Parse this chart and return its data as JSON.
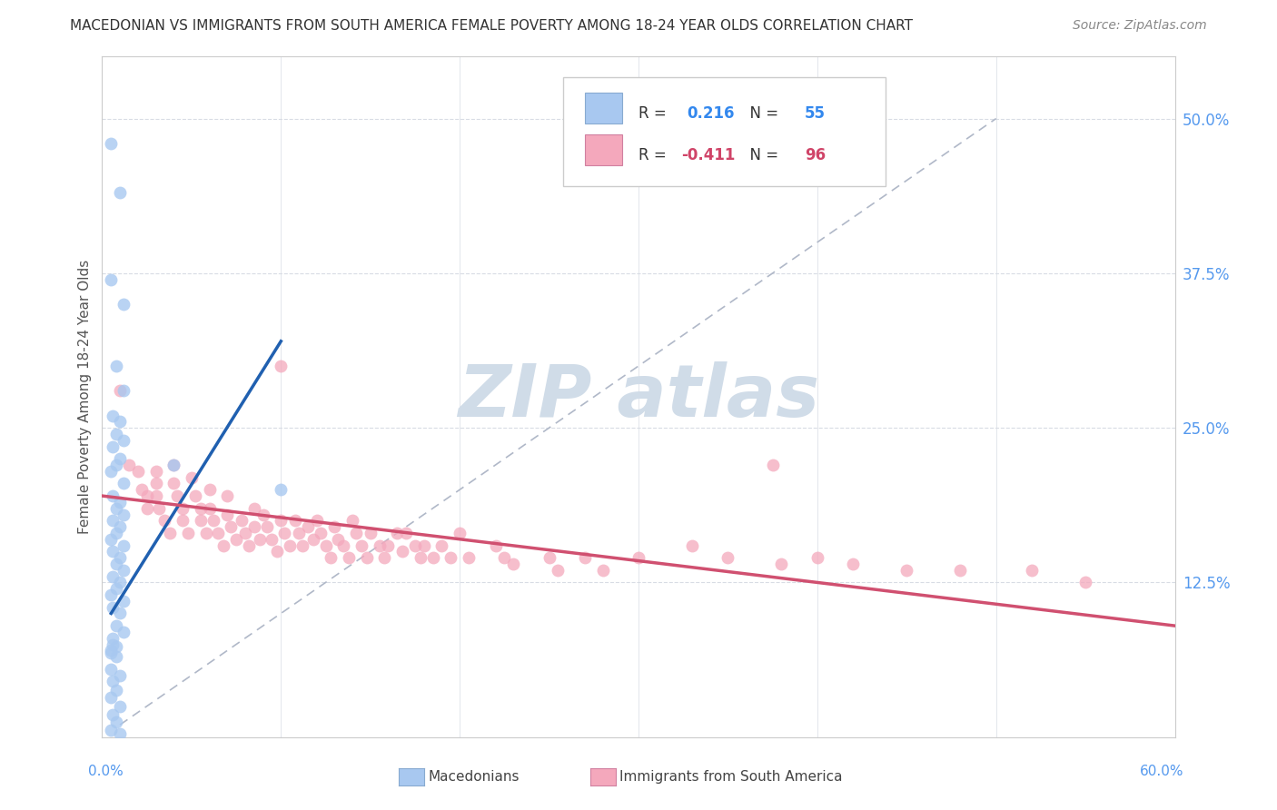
{
  "title": "MACEDONIAN VS IMMIGRANTS FROM SOUTH AMERICA FEMALE POVERTY AMONG 18-24 YEAR OLDS CORRELATION CHART",
  "source": "Source: ZipAtlas.com",
  "ylabel": "Female Poverty Among 18-24 Year Olds",
  "ylabel_right_ticks": [
    "12.5%",
    "25.0%",
    "37.5%",
    "50.0%"
  ],
  "ylabel_right_vals": [
    0.125,
    0.25,
    0.375,
    0.5
  ],
  "xlim": [
    0.0,
    0.6
  ],
  "ylim": [
    0.0,
    0.55
  ],
  "mac_R": 0.216,
  "mac_N": 55,
  "imm_R": -0.411,
  "imm_N": 96,
  "mac_color": "#a8c8f0",
  "imm_color": "#f4a8bc",
  "mac_line_color": "#2060b0",
  "imm_line_color": "#d05070",
  "diag_line_color": "#b0b8c8",
  "watermark_color": "#d0dce8",
  "grid_color": "#d8dce4",
  "mac_scatter": [
    [
      0.005,
      0.48
    ],
    [
      0.01,
      0.44
    ],
    [
      0.005,
      0.37
    ],
    [
      0.012,
      0.35
    ],
    [
      0.008,
      0.3
    ],
    [
      0.012,
      0.28
    ],
    [
      0.006,
      0.26
    ],
    [
      0.01,
      0.255
    ],
    [
      0.008,
      0.245
    ],
    [
      0.012,
      0.24
    ],
    [
      0.006,
      0.235
    ],
    [
      0.01,
      0.225
    ],
    [
      0.008,
      0.22
    ],
    [
      0.005,
      0.215
    ],
    [
      0.012,
      0.205
    ],
    [
      0.006,
      0.195
    ],
    [
      0.01,
      0.19
    ],
    [
      0.008,
      0.185
    ],
    [
      0.012,
      0.18
    ],
    [
      0.006,
      0.175
    ],
    [
      0.01,
      0.17
    ],
    [
      0.008,
      0.165
    ],
    [
      0.005,
      0.16
    ],
    [
      0.012,
      0.155
    ],
    [
      0.006,
      0.15
    ],
    [
      0.01,
      0.145
    ],
    [
      0.008,
      0.14
    ],
    [
      0.012,
      0.135
    ],
    [
      0.006,
      0.13
    ],
    [
      0.01,
      0.125
    ],
    [
      0.008,
      0.12
    ],
    [
      0.005,
      0.115
    ],
    [
      0.012,
      0.11
    ],
    [
      0.006,
      0.105
    ],
    [
      0.01,
      0.1
    ],
    [
      0.008,
      0.09
    ],
    [
      0.012,
      0.085
    ],
    [
      0.006,
      0.08
    ],
    [
      0.04,
      0.22
    ],
    [
      0.1,
      0.2
    ],
    [
      0.005,
      0.07
    ],
    [
      0.008,
      0.065
    ],
    [
      0.005,
      0.055
    ],
    [
      0.01,
      0.05
    ],
    [
      0.006,
      0.045
    ],
    [
      0.008,
      0.038
    ],
    [
      0.005,
      0.032
    ],
    [
      0.01,
      0.025
    ],
    [
      0.006,
      0.018
    ],
    [
      0.008,
      0.012
    ],
    [
      0.005,
      0.006
    ],
    [
      0.01,
      0.003
    ],
    [
      0.006,
      0.075
    ],
    [
      0.008,
      0.073
    ],
    [
      0.005,
      0.068
    ]
  ],
  "imm_scatter": [
    [
      0.01,
      0.28
    ],
    [
      0.015,
      0.22
    ],
    [
      0.02,
      0.215
    ],
    [
      0.022,
      0.2
    ],
    [
      0.025,
      0.195
    ],
    [
      0.025,
      0.185
    ],
    [
      0.03,
      0.215
    ],
    [
      0.03,
      0.205
    ],
    [
      0.03,
      0.195
    ],
    [
      0.032,
      0.185
    ],
    [
      0.035,
      0.175
    ],
    [
      0.038,
      0.165
    ],
    [
      0.04,
      0.22
    ],
    [
      0.04,
      0.205
    ],
    [
      0.042,
      0.195
    ],
    [
      0.045,
      0.185
    ],
    [
      0.045,
      0.175
    ],
    [
      0.048,
      0.165
    ],
    [
      0.05,
      0.21
    ],
    [
      0.052,
      0.195
    ],
    [
      0.055,
      0.185
    ],
    [
      0.055,
      0.175
    ],
    [
      0.058,
      0.165
    ],
    [
      0.06,
      0.2
    ],
    [
      0.06,
      0.185
    ],
    [
      0.062,
      0.175
    ],
    [
      0.065,
      0.165
    ],
    [
      0.068,
      0.155
    ],
    [
      0.07,
      0.195
    ],
    [
      0.07,
      0.18
    ],
    [
      0.072,
      0.17
    ],
    [
      0.075,
      0.16
    ],
    [
      0.078,
      0.175
    ],
    [
      0.08,
      0.165
    ],
    [
      0.082,
      0.155
    ],
    [
      0.085,
      0.185
    ],
    [
      0.085,
      0.17
    ],
    [
      0.088,
      0.16
    ],
    [
      0.09,
      0.18
    ],
    [
      0.092,
      0.17
    ],
    [
      0.095,
      0.16
    ],
    [
      0.098,
      0.15
    ],
    [
      0.1,
      0.3
    ],
    [
      0.1,
      0.175
    ],
    [
      0.102,
      0.165
    ],
    [
      0.105,
      0.155
    ],
    [
      0.108,
      0.175
    ],
    [
      0.11,
      0.165
    ],
    [
      0.112,
      0.155
    ],
    [
      0.115,
      0.17
    ],
    [
      0.118,
      0.16
    ],
    [
      0.12,
      0.175
    ],
    [
      0.122,
      0.165
    ],
    [
      0.125,
      0.155
    ],
    [
      0.128,
      0.145
    ],
    [
      0.13,
      0.17
    ],
    [
      0.132,
      0.16
    ],
    [
      0.135,
      0.155
    ],
    [
      0.138,
      0.145
    ],
    [
      0.14,
      0.175
    ],
    [
      0.142,
      0.165
    ],
    [
      0.145,
      0.155
    ],
    [
      0.148,
      0.145
    ],
    [
      0.15,
      0.165
    ],
    [
      0.155,
      0.155
    ],
    [
      0.158,
      0.145
    ],
    [
      0.16,
      0.155
    ],
    [
      0.165,
      0.165
    ],
    [
      0.168,
      0.15
    ],
    [
      0.17,
      0.165
    ],
    [
      0.175,
      0.155
    ],
    [
      0.178,
      0.145
    ],
    [
      0.18,
      0.155
    ],
    [
      0.185,
      0.145
    ],
    [
      0.19,
      0.155
    ],
    [
      0.195,
      0.145
    ],
    [
      0.2,
      0.165
    ],
    [
      0.205,
      0.145
    ],
    [
      0.22,
      0.155
    ],
    [
      0.225,
      0.145
    ],
    [
      0.23,
      0.14
    ],
    [
      0.25,
      0.145
    ],
    [
      0.255,
      0.135
    ],
    [
      0.27,
      0.145
    ],
    [
      0.28,
      0.135
    ],
    [
      0.3,
      0.145
    ],
    [
      0.33,
      0.155
    ],
    [
      0.35,
      0.145
    ],
    [
      0.375,
      0.22
    ],
    [
      0.38,
      0.14
    ],
    [
      0.4,
      0.145
    ],
    [
      0.42,
      0.14
    ],
    [
      0.45,
      0.135
    ],
    [
      0.48,
      0.135
    ],
    [
      0.52,
      0.135
    ],
    [
      0.55,
      0.125
    ]
  ],
  "mac_trend_x": [
    0.005,
    0.1
  ],
  "mac_trend_y": [
    0.1,
    0.32
  ],
  "imm_trend_x": [
    0.0,
    0.6
  ],
  "imm_trend_y": [
    0.195,
    0.09
  ]
}
